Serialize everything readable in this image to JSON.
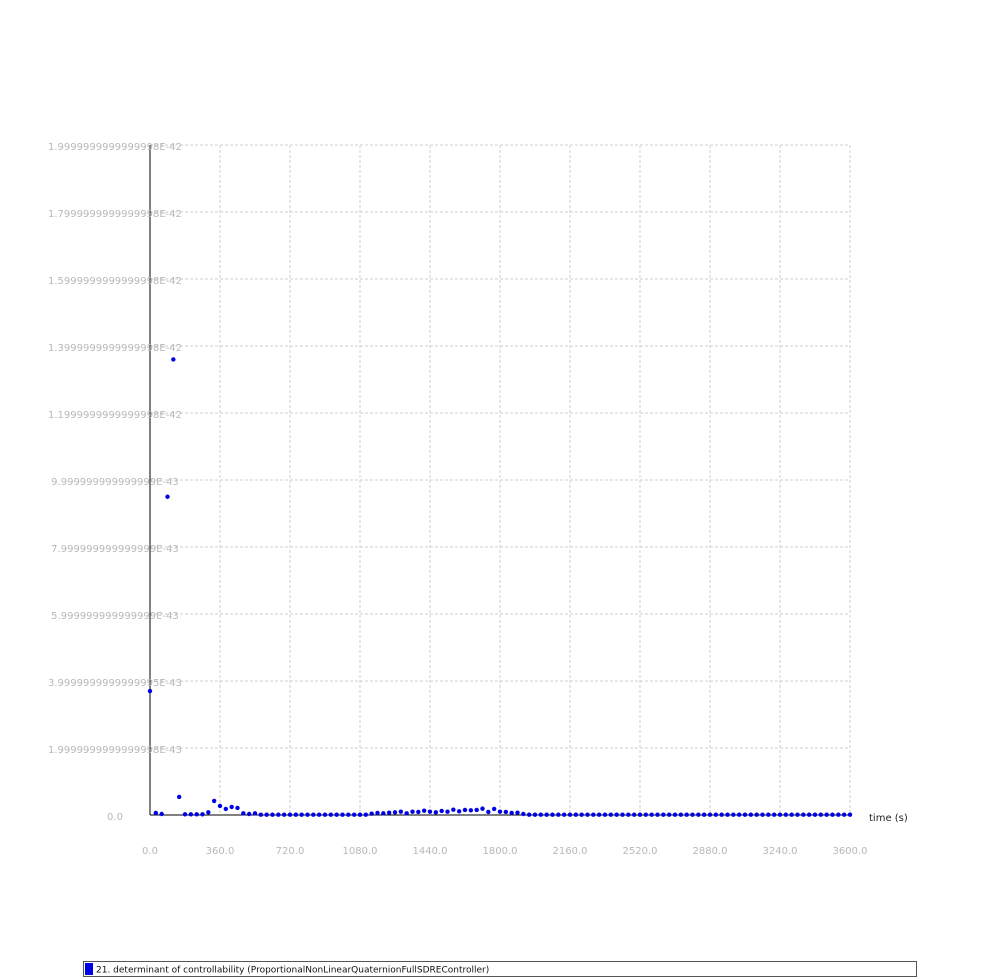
{
  "chart_data": {
    "type": "scatter",
    "x_label": "time (s)",
    "xlim": [
      0,
      3600
    ],
    "xticks": [
      {
        "value": 0,
        "label": "0.0"
      },
      {
        "value": 360,
        "label": "360.0"
      },
      {
        "value": 720,
        "label": "720.0"
      },
      {
        "value": 1080,
        "label": "1080.0"
      },
      {
        "value": 1440,
        "label": "1440.0"
      },
      {
        "value": 1800,
        "label": "1800.0"
      },
      {
        "value": 2160,
        "label": "2160.0"
      },
      {
        "value": 2520,
        "label": "2520.0"
      },
      {
        "value": 2880,
        "label": "2880.0"
      },
      {
        "value": 3240,
        "label": "3240.0"
      },
      {
        "value": 3600,
        "label": "3600.0"
      }
    ],
    "ylim": [
      0,
      2e-42
    ],
    "yticks": [
      {
        "value": 0,
        "label": "0.0"
      },
      {
        "value": 2e-43,
        "label": "1.9999999999999998E-43"
      },
      {
        "value": 4e-43,
        "label": "3.9999999999999995E-43"
      },
      {
        "value": 6e-43,
        "label": "5.999999999999999E-43"
      },
      {
        "value": 8e-43,
        "label": "7.999999999999999E-43"
      },
      {
        "value": 1e-42,
        "label": "9.999999999999999E-43"
      },
      {
        "value": 1.2e-42,
        "label": "1.1999999999999998E-42"
      },
      {
        "value": 1.4e-42,
        "label": "1.3999999999999998E-42"
      },
      {
        "value": 1.6e-42,
        "label": "1.5999999999999998E-42"
      },
      {
        "value": 1.8e-42,
        "label": "1.7999999999999998E-42"
      },
      {
        "value": 2e-42,
        "label": "1.9999999999999998E-42"
      }
    ],
    "grid": true,
    "legend": "bottom",
    "series": [
      {
        "name": "21. determinant of controllability (ProportionalNonLinearQuaternionFullSDREController)",
        "color": "#0000e6",
        "x": [
          0,
          30,
          60,
          90,
          120,
          150,
          180,
          210,
          240,
          270,
          300,
          330,
          360,
          390,
          420,
          450,
          480,
          510,
          540,
          570,
          600,
          630,
          660,
          690,
          720,
          750,
          780,
          810,
          840,
          870,
          900,
          930,
          960,
          990,
          1020,
          1050,
          1080,
          1110,
          1140,
          1170,
          1200,
          1230,
          1260,
          1290,
          1320,
          1350,
          1380,
          1410,
          1440,
          1470,
          1500,
          1530,
          1560,
          1590,
          1620,
          1650,
          1680,
          1710,
          1740,
          1770,
          1800,
          1830,
          1860,
          1890,
          1920,
          1950,
          1980,
          2010,
          2040,
          2070,
          2100,
          2130,
          2160,
          2190,
          2220,
          2250,
          2280,
          2310,
          2340,
          2370,
          2400,
          2430,
          2460,
          2490,
          2520,
          2550,
          2580,
          2610,
          2640,
          2670,
          2700,
          2730,
          2760,
          2790,
          2820,
          2850,
          2880,
          2910,
          2940,
          2970,
          3000,
          3030,
          3060,
          3090,
          3120,
          3150,
          3180,
          3210,
          3240,
          3270,
          3300,
          3330,
          3360,
          3390,
          3420,
          3450,
          3480,
          3510,
          3540,
          3570,
          3600
        ],
        "values": [
          3.7e-43,
          6e-45,
          3e-45,
          9.5e-43,
          1.36e-42,
          5.4e-44,
          2e-45,
          2e-45,
          2e-45,
          2e-45,
          8e-45,
          4.2e-44,
          2.7e-44,
          1.8e-44,
          2.4e-44,
          2.1e-44,
          5e-45,
          3e-45,
          5e-45,
          1e-45,
          1e-45,
          1e-45,
          1e-45,
          1e-45,
          1e-45,
          1e-45,
          1e-45,
          1e-45,
          1e-45,
          1e-45,
          1e-45,
          1e-45,
          1e-45,
          1e-45,
          1e-45,
          1e-45,
          1e-45,
          1e-45,
          4e-45,
          6e-45,
          5e-45,
          7e-45,
          8e-45,
          1e-44,
          5e-45,
          1e-44,
          9e-45,
          1.3e-44,
          1e-44,
          8e-45,
          1.2e-44,
          1e-44,
          1.6e-44,
          1.1e-44,
          1.5e-44,
          1.4e-44,
          1.5e-44,
          1.9e-44,
          9e-45,
          1.8e-44,
          1e-44,
          9e-45,
          6e-45,
          7e-45,
          3e-45,
          1e-45,
          1e-45,
          1e-45,
          1e-45,
          1e-45,
          1e-45,
          1e-45,
          1e-45,
          1e-45,
          1e-45,
          1e-45,
          1e-45,
          1e-45,
          1e-45,
          1e-45,
          1e-45,
          1e-45,
          1e-45,
          1e-45,
          1e-45,
          1e-45,
          1e-45,
          1e-45,
          1e-45,
          1e-45,
          1e-45,
          1e-45,
          1e-45,
          1e-45,
          1e-45,
          1e-45,
          1e-45,
          1e-45,
          1e-45,
          1e-45,
          1e-45,
          1e-45,
          1e-45,
          1e-45,
          1e-45,
          1e-45,
          1e-45,
          1e-45,
          1e-45,
          1e-45,
          1e-45,
          1e-45,
          1e-45,
          1e-45,
          1e-45,
          1e-45,
          1e-45,
          1e-45,
          1e-45,
          1e-45,
          1e-45
        ]
      }
    ]
  }
}
